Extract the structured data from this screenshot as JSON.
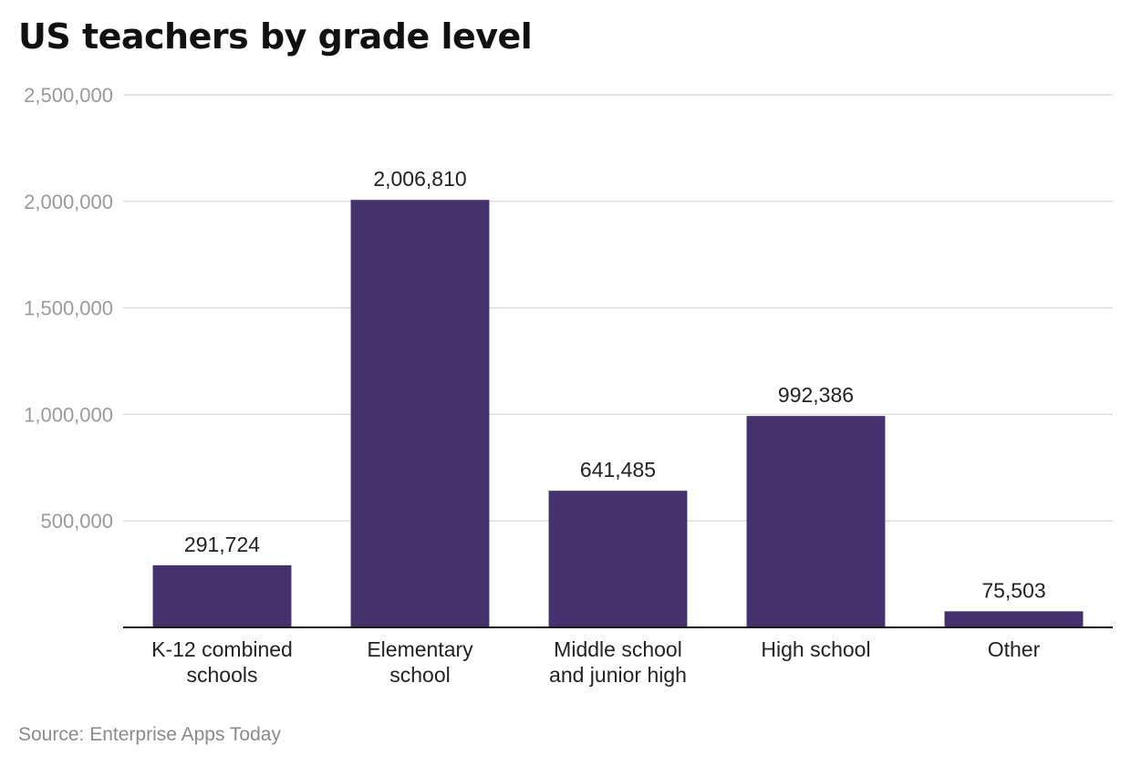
{
  "chart_data": {
    "type": "bar",
    "title": "US teachers by grade level",
    "categories": [
      [
        "K-12 combined",
        "schools"
      ],
      [
        "Elementary",
        "school"
      ],
      [
        "Middle school",
        "and junior high"
      ],
      [
        "High school"
      ],
      [
        "Other"
      ]
    ],
    "values": [
      291724,
      2006810,
      641485,
      992386,
      75503
    ],
    "value_labels": [
      "291,724",
      "2,006,810",
      "641,485",
      "992,386",
      "75,503"
    ],
    "y_ticks": [
      500000,
      1000000,
      1500000,
      2000000,
      2500000
    ],
    "y_tick_labels": [
      "500,000",
      "1,000,000",
      "1,500,000",
      "2,000,000",
      "2,500,000"
    ],
    "ylim": [
      0,
      2500000
    ],
    "grid": true,
    "bar_color": "#45316e",
    "source": "Source: Enterprise Apps Today"
  }
}
